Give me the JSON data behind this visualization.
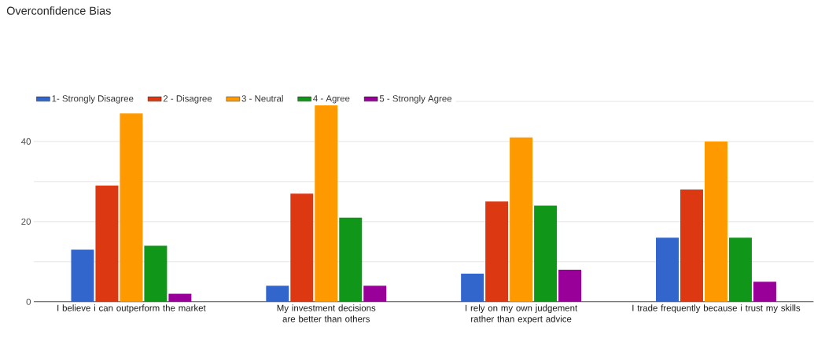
{
  "chart_data": {
    "type": "bar",
    "title": "Overconfidence Bias",
    "categories": [
      "I believe i can outperform the market",
      "My investment decisions are better than others",
      "I rely on my own judgement rather than expert advice",
      "I trade frequently because i trust my skills"
    ],
    "series": [
      {
        "name": "1- Strongly Disagree",
        "color": "#3366cc",
        "values": [
          13,
          4,
          7,
          16
        ]
      },
      {
        "name": "2 - Disagree",
        "color": "#dc3912",
        "values": [
          29,
          27,
          25,
          28
        ]
      },
      {
        "name": "3 - Neutral",
        "color": "#ff9900",
        "values": [
          47,
          49,
          41,
          40
        ]
      },
      {
        "name": "4 - Agree",
        "color": "#109618",
        "values": [
          14,
          21,
          24,
          16
        ]
      },
      {
        "name": "5 - Strongly Agree",
        "color": "#990099",
        "values": [
          2,
          4,
          8,
          5
        ]
      }
    ],
    "ylim": [
      0,
      50
    ],
    "yticks": [
      0,
      {
        "value": 10,
        "label": null
      },
      20,
      {
        "value": 30,
        "label": null
      },
      40,
      {
        "value": 50,
        "label": null
      }
    ],
    "grid": true,
    "legend": "top"
  }
}
